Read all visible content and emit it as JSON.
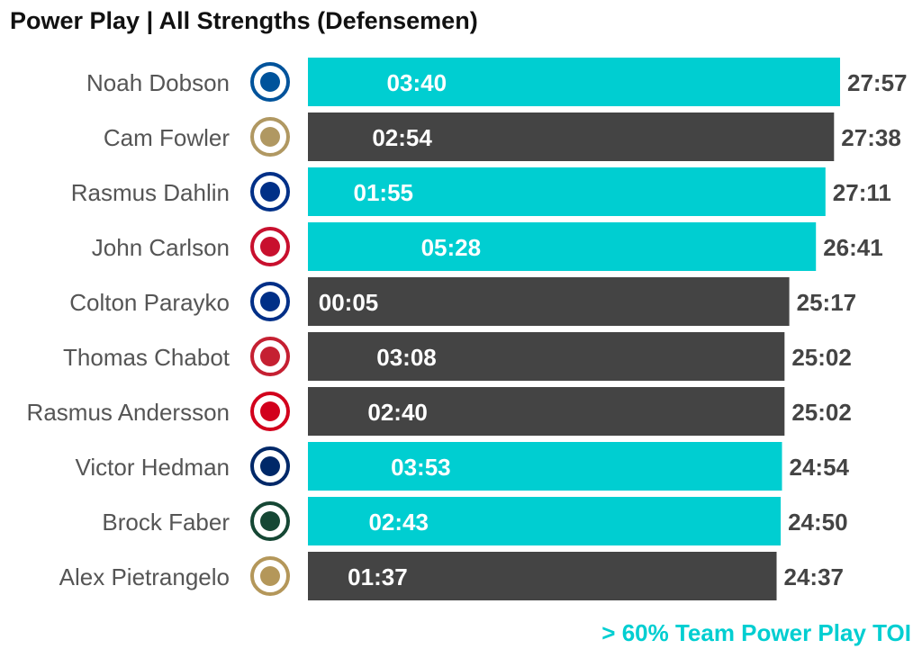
{
  "chart_data": {
    "type": "bar",
    "orientation": "horizontal",
    "title": "Power Play | All Strengths (Defensemen)",
    "annotation": "> 60% Team Power Play TOI",
    "value_unit": "mm:ss",
    "colors": {
      "highlight": "#00CED1",
      "default": "#444444",
      "total_label": "#444444",
      "name_label": "#555555"
    },
    "rows": [
      {
        "name": "Noah Dobson",
        "team_logo": "islanders-logo",
        "logo_color": "#00539B",
        "total": "27:57",
        "pp": "03:40",
        "highlight": true
      },
      {
        "name": "Cam Fowler",
        "team_logo": "ducks-logo",
        "logo_color": "#B09862",
        "total": "27:38",
        "pp": "02:54",
        "highlight": false
      },
      {
        "name": "Rasmus Dahlin",
        "team_logo": "sabres-logo",
        "logo_color": "#003087",
        "total": "27:11",
        "pp": "01:55",
        "highlight": true
      },
      {
        "name": "John Carlson",
        "team_logo": "capitals-logo",
        "logo_color": "#C8102E",
        "total": "26:41",
        "pp": "05:28",
        "highlight": true
      },
      {
        "name": "Colton Parayko",
        "team_logo": "blues-logo",
        "logo_color": "#002F87",
        "total": "25:17",
        "pp": "00:05",
        "highlight": false
      },
      {
        "name": "Thomas Chabot",
        "team_logo": "senators-logo",
        "logo_color": "#C52032",
        "total": "25:02",
        "pp": "03:08",
        "highlight": false
      },
      {
        "name": "Rasmus Andersson",
        "team_logo": "flames-logo",
        "logo_color": "#D2001C",
        "total": "25:02",
        "pp": "02:40",
        "highlight": false
      },
      {
        "name": "Victor Hedman",
        "team_logo": "lightning-logo",
        "logo_color": "#002868",
        "total": "24:54",
        "pp": "03:53",
        "highlight": true
      },
      {
        "name": "Brock Faber",
        "team_logo": "wild-logo",
        "logo_color": "#154734",
        "total": "24:50",
        "pp": "02:43",
        "highlight": true
      },
      {
        "name": "Alex Pietrangelo",
        "team_logo": "golden-knights-logo",
        "logo_color": "#B4975A",
        "total": "24:37",
        "pp": "01:37",
        "highlight": false
      }
    ]
  }
}
